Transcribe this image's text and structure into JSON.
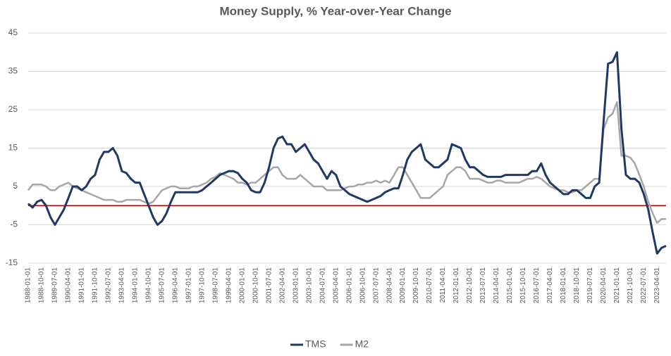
{
  "chart_data": {
    "type": "line",
    "title": "Money Supply, % Year-over-Year Change",
    "x": [
      "1988-01-01",
      "1988-04-01",
      "1988-07-01",
      "1988-10-01",
      "1989-01-01",
      "1989-04-01",
      "1989-07-01",
      "1989-10-01",
      "1990-01-01",
      "1990-04-01",
      "1990-07-01",
      "1990-10-01",
      "1991-01-01",
      "1991-04-01",
      "1991-07-01",
      "1991-10-01",
      "1992-01-01",
      "1992-04-01",
      "1992-07-01",
      "1992-10-01",
      "1993-01-01",
      "1993-04-01",
      "1993-07-01",
      "1993-10-01",
      "1994-01-01",
      "1994-04-01",
      "1994-07-01",
      "1994-10-01",
      "1995-01-01",
      "1995-04-01",
      "1995-07-01",
      "1995-10-01",
      "1996-01-01",
      "1996-04-01",
      "1996-07-01",
      "1996-10-01",
      "1997-01-01",
      "1997-04-01",
      "1997-07-01",
      "1997-10-01",
      "1998-01-01",
      "1998-04-01",
      "1998-07-01",
      "1998-10-01",
      "1999-01-01",
      "1999-04-01",
      "1999-07-01",
      "1999-10-01",
      "2000-01-01",
      "2000-04-01",
      "2000-07-01",
      "2000-10-01",
      "2001-01-01",
      "2001-04-01",
      "2001-07-01",
      "2001-10-01",
      "2002-01-01",
      "2002-04-01",
      "2002-07-01",
      "2002-10-01",
      "2003-01-01",
      "2003-04-01",
      "2003-07-01",
      "2003-10-01",
      "2004-01-01",
      "2004-04-01",
      "2004-07-01",
      "2004-10-01",
      "2005-01-01",
      "2005-04-01",
      "2005-07-01",
      "2005-10-01",
      "2006-01-01",
      "2006-04-01",
      "2006-07-01",
      "2006-10-01",
      "2007-01-01",
      "2007-04-01",
      "2007-07-01",
      "2007-10-01",
      "2008-01-01",
      "2008-04-01",
      "2008-07-01",
      "2008-10-01",
      "2009-01-01",
      "2009-04-01",
      "2009-07-01",
      "2009-10-01",
      "2010-01-01",
      "2010-04-01",
      "2010-07-01",
      "2010-10-01",
      "2011-01-01",
      "2011-04-01",
      "2011-07-01",
      "2011-10-01",
      "2012-01-01",
      "2012-04-01",
      "2012-07-01",
      "2012-10-01",
      "2013-01-01",
      "2013-04-01",
      "2013-07-01",
      "2013-10-01",
      "2014-01-01",
      "2014-04-01",
      "2014-07-01",
      "2014-10-01",
      "2015-01-01",
      "2015-04-01",
      "2015-07-01",
      "2015-10-01",
      "2016-01-01",
      "2016-04-01",
      "2016-07-01",
      "2016-10-01",
      "2017-01-01",
      "2017-04-01",
      "2017-07-01",
      "2017-10-01",
      "2018-01-01",
      "2018-04-01",
      "2018-07-01",
      "2018-10-01",
      "2019-01-01",
      "2019-04-01",
      "2019-07-01",
      "2019-10-01",
      "2020-01-01",
      "2020-04-01",
      "2020-07-01",
      "2020-10-01",
      "2021-01-01",
      "2021-04-01",
      "2021-07-01",
      "2021-10-01",
      "2022-01-01",
      "2022-04-01",
      "2022-07-01",
      "2022-10-01",
      "2023-01-01",
      "2023-04-01",
      "2023-07-01",
      "2023-10-01"
    ],
    "series": [
      {
        "name": "TMS",
        "color": "#1f3864",
        "values": [
          0.5,
          -0.5,
          1,
          1.5,
          0,
          -3,
          -5,
          -3,
          -1,
          2,
          5,
          5,
          4,
          5,
          7,
          8,
          12,
          14,
          14,
          15,
          13,
          9,
          8.5,
          7,
          6,
          6,
          3,
          0,
          -3,
          -5,
          -4,
          -2,
          1,
          3.5,
          3.5,
          3.5,
          3.5,
          3.5,
          3.5,
          4,
          5,
          6,
          7,
          8,
          8.5,
          9,
          9,
          8.5,
          7,
          6,
          4,
          3.5,
          3.5,
          6,
          10,
          15,
          17.5,
          18,
          16,
          16,
          14,
          15,
          16,
          14,
          12,
          11,
          9,
          7,
          9,
          8,
          5,
          4,
          3,
          2.5,
          2,
          1.5,
          1,
          1.5,
          2,
          2.5,
          3.5,
          4,
          4.5,
          4.5,
          8,
          12,
          14,
          15,
          16,
          12,
          11,
          10,
          10,
          11,
          12,
          16,
          15.5,
          15,
          12,
          10,
          10,
          9,
          8,
          7.5,
          7.5,
          7.5,
          7.5,
          8,
          8,
          8,
          8,
          8,
          8,
          9,
          9,
          11,
          8,
          6,
          5,
          4,
          3,
          3,
          4,
          4,
          3,
          2,
          2,
          5,
          6,
          22,
          37,
          37.5,
          40,
          20,
          8,
          7,
          7,
          6,
          3,
          -1,
          -7,
          -12.5,
          -11,
          -10.5
        ]
      },
      {
        "name": "M2",
        "color": "#a6a6a6",
        "values": [
          4,
          5.5,
          5.5,
          5.5,
          5,
          4,
          4,
          5,
          5.5,
          6,
          5,
          4.5,
          4,
          3.5,
          3,
          2.5,
          2,
          1.5,
          1.5,
          1.5,
          1,
          1,
          1.5,
          1.5,
          1.5,
          1.5,
          1,
          0.5,
          1,
          2.5,
          4,
          4.5,
          5,
          5,
          4.5,
          4.5,
          4.5,
          5,
          5,
          5.5,
          6,
          7,
          7.5,
          8.5,
          8,
          7.5,
          7,
          6,
          6,
          5.5,
          6,
          6,
          7,
          8,
          9,
          10,
          10,
          8,
          7,
          7,
          7,
          8,
          7,
          6,
          5,
          5,
          5,
          4,
          4,
          4,
          4,
          4.5,
          5,
          5,
          5.5,
          5.5,
          6,
          6,
          6.5,
          6,
          6.5,
          6,
          8,
          10,
          10,
          8,
          6,
          4,
          2,
          2,
          2,
          3,
          4,
          5,
          8,
          9,
          10,
          10,
          9,
          7,
          7,
          7,
          6.5,
          6,
          6,
          6.5,
          6.5,
          6,
          6,
          6,
          6,
          6.5,
          7,
          7,
          7.5,
          7,
          6,
          5,
          4.5,
          4,
          4,
          3.5,
          3.5,
          4,
          4,
          5,
          6,
          7,
          7,
          20,
          23,
          24,
          27,
          13,
          13,
          12.5,
          11,
          8,
          5,
          1,
          -2,
          -4.5,
          -3.5,
          -3.5
        ]
      }
    ],
    "xlim": [
      "1988-01-01",
      "2023-10-01"
    ],
    "xticks": [
      "1988-01-01",
      "1988-10-01",
      "1989-07-01",
      "1990-04-01",
      "1991-01-01",
      "1991-10-01",
      "1992-07-01",
      "1993-04-01",
      "1994-01-01",
      "1994-10-01",
      "1995-07-01",
      "1996-04-01",
      "1997-01-01",
      "1997-10-01",
      "1998-07-01",
      "1999-04-01",
      "2000-01-01",
      "2000-10-01",
      "2001-07-01",
      "2002-04-01",
      "2003-01-01",
      "2003-10-01",
      "2004-07-01",
      "2005-04-01",
      "2006-01-01",
      "2006-10-01",
      "2007-07-01",
      "2008-04-01",
      "2009-01-01",
      "2009-10-01",
      "2010-07-01",
      "2011-04-01",
      "2012-01-01",
      "2012-10-01",
      "2013-07-01",
      "2014-04-01",
      "2015-01-01",
      "2015-10-01",
      "2016-07-01",
      "2017-04-01",
      "2018-01-01",
      "2018-10-01",
      "2019-07-01",
      "2020-04-01",
      "2021-01-01",
      "2021-10-01",
      "2022-07-01",
      "2023-04-01"
    ],
    "ylim": [
      -15,
      45
    ],
    "yticks": [
      -15,
      -5,
      5,
      15,
      25,
      35,
      45
    ],
    "grid": true,
    "hlines": [
      {
        "value": 0,
        "color": "#c00000"
      }
    ],
    "legend": "bottom"
  }
}
